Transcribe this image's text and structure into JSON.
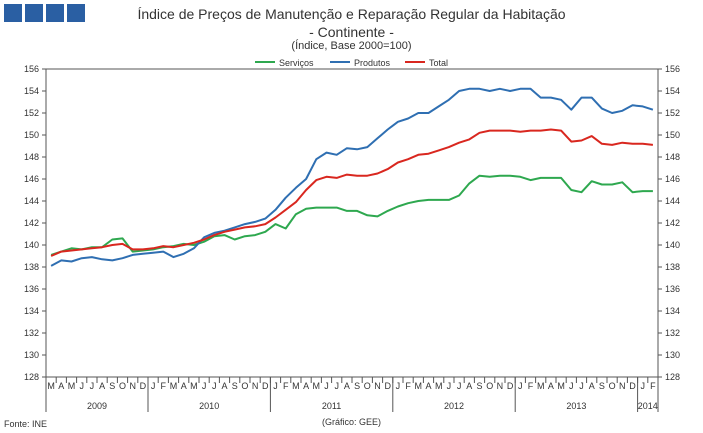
{
  "header": {
    "title": "Índice de Preços de Manutenção e Reparação Regular da Habitação",
    "subtitle": "- Continente -",
    "unit": "(Índice, Base 2000=100)"
  },
  "footer": {
    "source": "Fonte:  INE",
    "credit": "(Gráfico:  GEE)"
  },
  "colors": {
    "servicos": "#2ea84f",
    "produtos": "#2f6fb2",
    "total": "#d9271f",
    "logo": "#2a5fa3"
  },
  "chart_data": {
    "type": "line",
    "title": "Índice de Preços de Manutenção e Reparação Regular da Habitação",
    "ylabel": "Índice, Base 2000=100",
    "ylim": [
      128,
      156
    ],
    "yticks": [
      128,
      130,
      132,
      134,
      136,
      138,
      140,
      142,
      144,
      146,
      148,
      150,
      152,
      154,
      156
    ],
    "grid": false,
    "legend_position": "top-center",
    "month_labels": [
      "M",
      "A",
      "M",
      "J",
      "J",
      "A",
      "S",
      "O",
      "N",
      "D",
      "J",
      "F",
      "M",
      "A",
      "M",
      "J",
      "J",
      "A",
      "S",
      "O",
      "N",
      "D",
      "J",
      "F",
      "M",
      "A",
      "M",
      "J",
      "J",
      "A",
      "S",
      "O",
      "N",
      "D",
      "J",
      "F",
      "M",
      "A",
      "M",
      "J",
      "J",
      "A",
      "S",
      "O",
      "N",
      "D",
      "J",
      "F",
      "M",
      "A",
      "M",
      "J",
      "J",
      "A",
      "S",
      "O",
      "N",
      "D",
      "J",
      "F"
    ],
    "year_groups": [
      {
        "label": "2009",
        "start": 0,
        "count": 10
      },
      {
        "label": "2010",
        "start": 10,
        "count": 12
      },
      {
        "label": "2011",
        "start": 22,
        "count": 12
      },
      {
        "label": "2012",
        "start": 34,
        "count": 12
      },
      {
        "label": "2013",
        "start": 46,
        "count": 12
      },
      {
        "label": "2014",
        "start": 58,
        "count": 2
      }
    ],
    "series": [
      {
        "name": "Serviços",
        "color": "#2ea84f",
        "values": [
          139.1,
          139.4,
          139.7,
          139.6,
          139.8,
          139.8,
          140.5,
          140.6,
          139.4,
          139.5,
          139.6,
          139.8,
          139.9,
          140.1,
          140.0,
          140.3,
          140.8,
          140.9,
          140.5,
          140.8,
          140.9,
          141.2,
          141.9,
          141.5,
          142.8,
          143.3,
          143.4,
          143.4,
          143.4,
          143.1,
          143.1,
          142.7,
          142.6,
          143.1,
          143.5,
          143.8,
          144.0,
          144.1,
          144.1,
          144.1,
          144.5,
          145.6,
          146.3,
          146.2,
          146.3,
          146.3,
          146.2,
          145.9,
          146.1,
          146.1,
          146.1,
          145.0,
          144.8,
          145.8,
          145.5,
          145.5,
          145.7,
          144.8,
          144.9,
          144.9
        ]
      },
      {
        "name": "Produtos",
        "color": "#2f6fb2",
        "values": [
          138.1,
          138.6,
          138.5,
          138.8,
          138.9,
          138.7,
          138.6,
          138.8,
          139.1,
          139.2,
          139.3,
          139.4,
          138.9,
          139.2,
          139.7,
          140.7,
          141.1,
          141.3,
          141.6,
          141.9,
          142.1,
          142.4,
          143.2,
          144.3,
          145.2,
          146.0,
          147.8,
          148.4,
          148.2,
          148.8,
          148.7,
          148.9,
          149.7,
          150.5,
          151.2,
          151.5,
          152.0,
          152.0,
          152.6,
          153.2,
          154.0,
          154.2,
          154.2,
          154.0,
          154.2,
          154.0,
          154.2,
          154.2,
          153.4,
          153.4,
          153.2,
          152.3,
          153.4,
          153.4,
          152.4,
          152.0,
          152.2,
          152.7,
          152.6,
          152.3
        ]
      },
      {
        "name": "Total",
        "color": "#d9271f",
        "values": [
          139.0,
          139.4,
          139.5,
          139.6,
          139.7,
          139.8,
          140.0,
          140.1,
          139.6,
          139.6,
          139.7,
          139.9,
          139.8,
          140.0,
          140.2,
          140.5,
          140.9,
          141.2,
          141.4,
          141.6,
          141.7,
          141.9,
          142.5,
          143.2,
          143.9,
          145.0,
          145.9,
          146.2,
          146.1,
          146.4,
          146.3,
          146.3,
          146.5,
          146.9,
          147.5,
          147.8,
          148.2,
          148.3,
          148.6,
          148.9,
          149.3,
          149.6,
          150.2,
          150.4,
          150.4,
          150.4,
          150.3,
          150.4,
          150.4,
          150.5,
          150.4,
          149.4,
          149.5,
          149.9,
          149.2,
          149.1,
          149.3,
          149.2,
          149.2,
          149.1
        ]
      }
    ]
  }
}
